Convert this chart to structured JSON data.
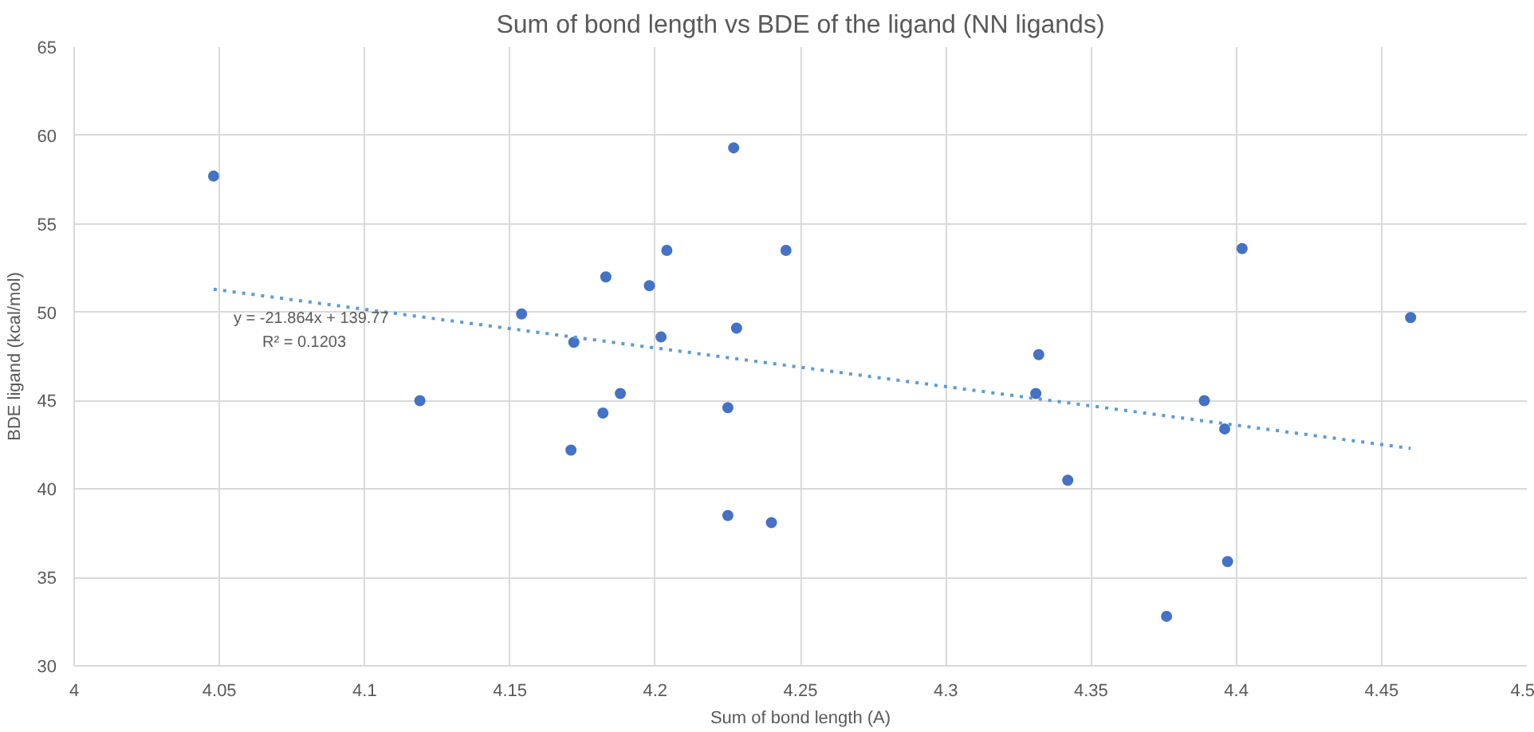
{
  "chart_data": {
    "type": "scatter",
    "title": "Sum of bond length vs BDE of the ligand (NN ligands)",
    "xlabel": "Sum of bond length (A)",
    "ylabel": "BDE ligand (kcal/mol)",
    "xlim": [
      4,
      4.5
    ],
    "xticks": [
      4,
      4.05,
      4.1,
      4.15,
      4.2,
      4.25,
      4.3,
      4.35,
      4.4,
      4.45,
      4.5
    ],
    "ylim": [
      30,
      65
    ],
    "yticks": [
      30,
      35,
      40,
      45,
      50,
      55,
      60,
      65
    ],
    "grid": true,
    "series": [
      {
        "color": "#4472c4",
        "marker": "circle",
        "x": [
          4.048,
          4.119,
          4.154,
          4.172,
          4.171,
          4.183,
          4.182,
          4.188,
          4.198,
          4.202,
          4.204,
          4.227,
          4.228,
          4.225,
          4.225,
          4.24,
          4.245,
          4.332,
          4.331,
          4.342,
          4.389,
          4.397,
          4.402,
          4.396,
          4.376,
          4.46
        ],
        "values": [
          57.7,
          45.0,
          49.9,
          48.3,
          42.2,
          52.0,
          44.3,
          45.4,
          51.5,
          48.6,
          53.5,
          59.3,
          49.1,
          44.6,
          38.5,
          38.1,
          53.5,
          47.6,
          45.4,
          40.5,
          45.0,
          35.9,
          53.6,
          43.4,
          32.8,
          49.7
        ]
      },
      {
        "type": "line",
        "color": "#5b9bd5",
        "line_style": "dotted",
        "x": [
          4.048,
          4.46
        ],
        "values": [
          51.3,
          42.3
        ]
      }
    ],
    "annotations": [
      "y = -21.864x + 139.77",
      "R² = 0.1203"
    ]
  }
}
